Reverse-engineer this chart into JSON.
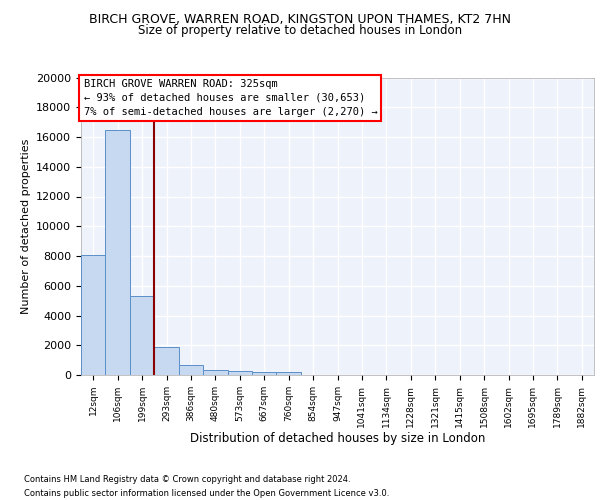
{
  "title_line1": "BIRCH GROVE, WARREN ROAD, KINGSTON UPON THAMES, KT2 7HN",
  "title_line2": "Size of property relative to detached houses in London",
  "xlabel": "Distribution of detached houses by size in London",
  "ylabel": "Number of detached properties",
  "bar_labels": [
    "12sqm",
    "106sqm",
    "199sqm",
    "293sqm",
    "386sqm",
    "480sqm",
    "573sqm",
    "667sqm",
    "760sqm",
    "854sqm",
    "947sqm",
    "1041sqm",
    "1134sqm",
    "1228sqm",
    "1321sqm",
    "1415sqm",
    "1508sqm",
    "1602sqm",
    "1695sqm",
    "1789sqm",
    "1882sqm"
  ],
  "bar_values": [
    8100,
    16500,
    5300,
    1850,
    650,
    330,
    260,
    200,
    170,
    0,
    0,
    0,
    0,
    0,
    0,
    0,
    0,
    0,
    0,
    0,
    0
  ],
  "bar_color": "#c6d9f0",
  "bar_edgecolor": "#5b8fc9",
  "background_color": "#eef2fb",
  "grid_color": "#ffffff",
  "ylim_max": 20000,
  "yticks": [
    0,
    2000,
    4000,
    6000,
    8000,
    10000,
    12000,
    14000,
    16000,
    18000,
    20000
  ],
  "annotation_title": "BIRCH GROVE WARREN ROAD: 325sqm",
  "annotation_line2": "← 93% of detached houses are smaller (30,653)",
  "annotation_line3": "7% of semi-detached houses are larger (2,270) →",
  "vline_x": 2.5,
  "footer_line1": "Contains HM Land Registry data © Crown copyright and database right 2024.",
  "footer_line2": "Contains public sector information licensed under the Open Government Licence v3.0."
}
